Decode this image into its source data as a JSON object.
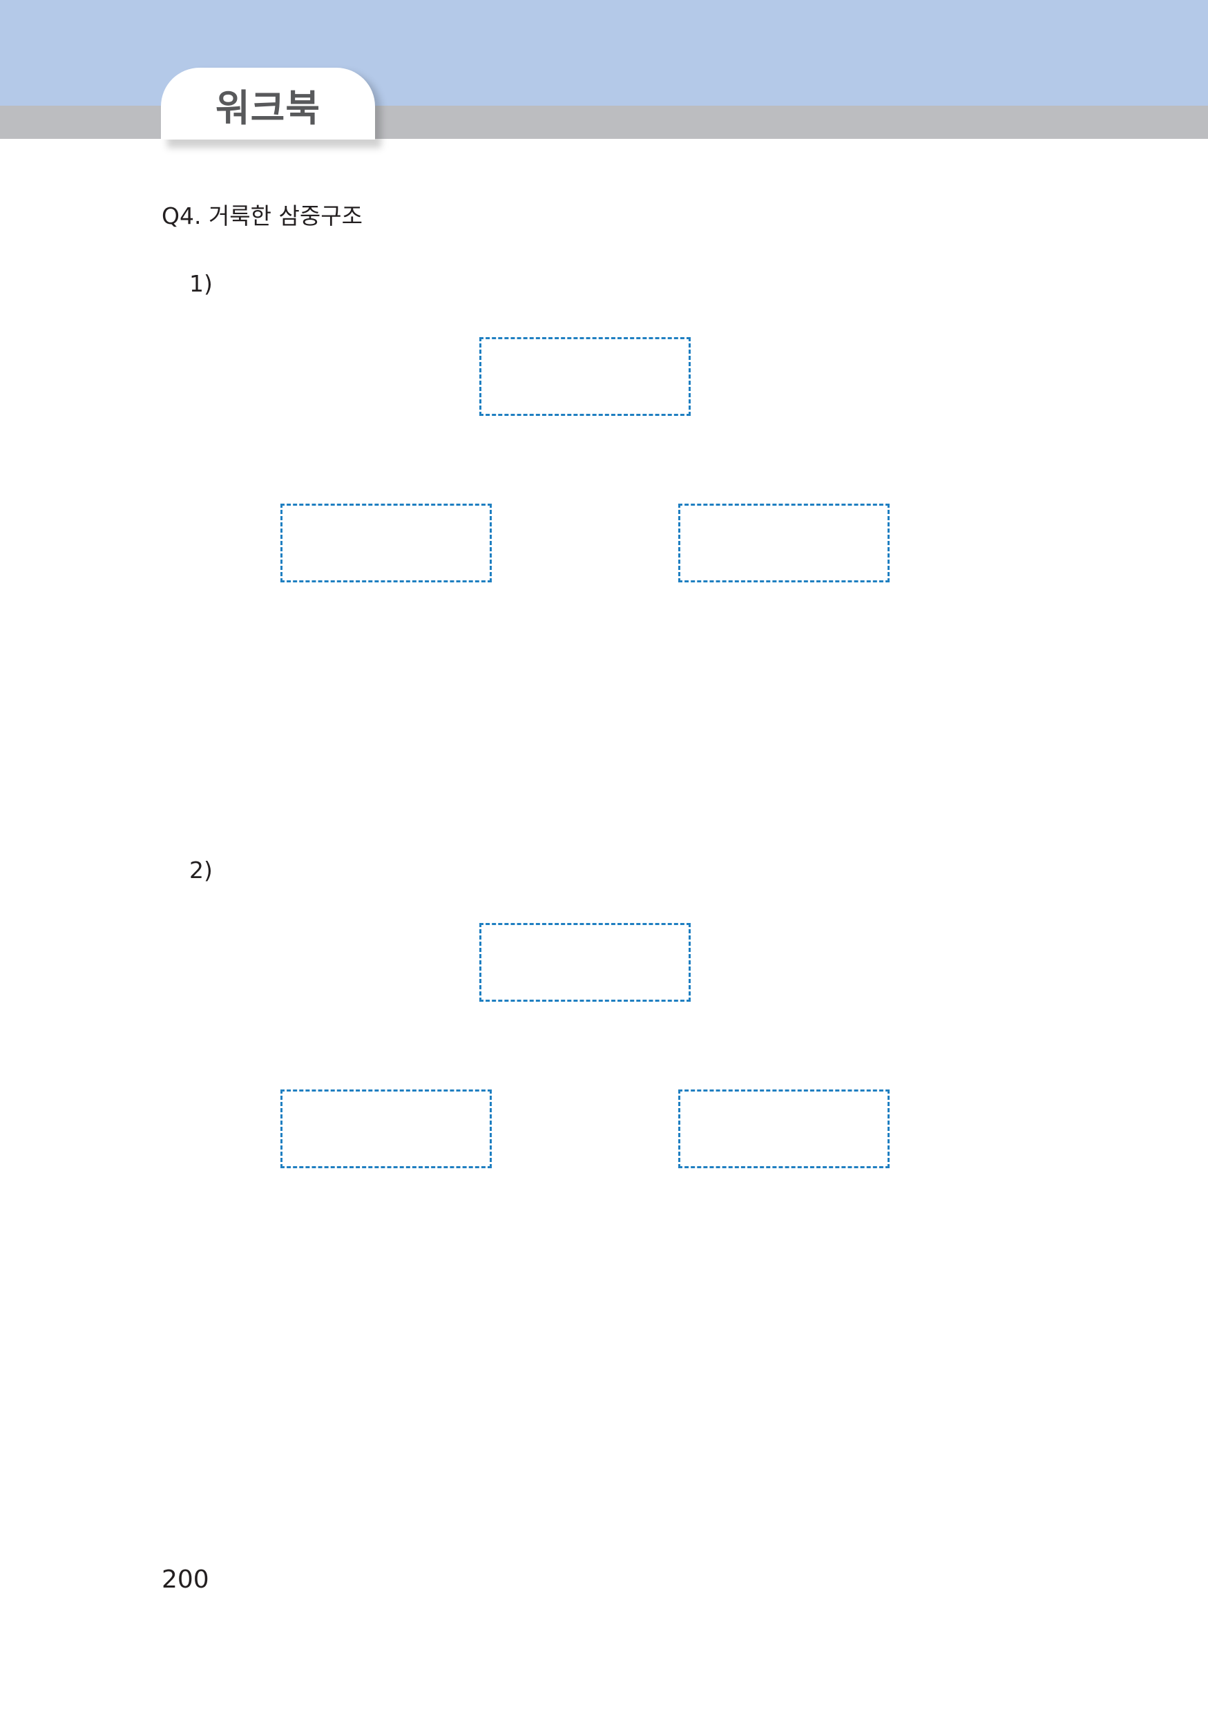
{
  "header": {
    "section_label": "워크북"
  },
  "question": {
    "title": "Q4. 거룩한 삼중구조",
    "parts": [
      {
        "label": "1)",
        "boxes": [
          {
            "value": ""
          },
          {
            "value": ""
          },
          {
            "value": ""
          }
        ]
      },
      {
        "label": "2)",
        "boxes": [
          {
            "value": ""
          },
          {
            "value": ""
          },
          {
            "value": ""
          }
        ]
      }
    ]
  },
  "footer": {
    "page_number": "200"
  },
  "colors": {
    "header_band": "#b4c9e8",
    "header_strip": "#bcbdc0",
    "answer_box_border": "#1f7fc1"
  }
}
